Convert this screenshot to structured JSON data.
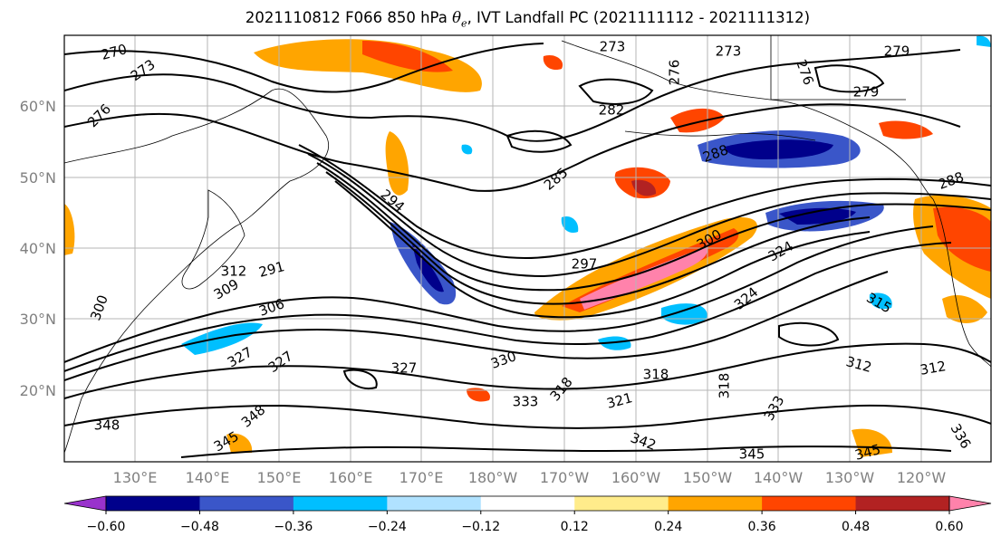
{
  "title": {
    "prefix": "2021110812 F066 850 hPa ",
    "theta_e": "θ",
    "theta_sub": "e",
    "suffix": ", IVT Landfall PC (2021111112 - 2021111312)"
  },
  "lat_labels": [
    "60°N",
    "50°N",
    "40°N",
    "30°N",
    "20°N"
  ],
  "lon_labels": [
    "130°E",
    "140°E",
    "150°E",
    "160°E",
    "170°E",
    "180°W",
    "170°W",
    "160°W",
    "150°W",
    "140°W",
    "130°W",
    "120°W"
  ],
  "colorbar": {
    "colors": [
      "#9932cc",
      "#00008b",
      "#3a56c9",
      "#00bfff",
      "#b0e2ff",
      "#ffffff",
      "#ffec8b",
      "#ffa500",
      "#ff4500",
      "#b22222",
      "#ff82ab"
    ],
    "tick_labels": [
      "−0.60",
      "−0.48",
      "−0.36",
      "−0.24",
      "−0.12",
      "0.12",
      "0.24",
      "0.36",
      "0.48",
      "0.60"
    ]
  },
  "contour_labels": [
    "270",
    "273",
    "273",
    "273",
    "279",
    "276",
    "276",
    "276",
    "279",
    "282",
    "285",
    "288",
    "288",
    "291",
    "294",
    "297",
    "300",
    "306",
    "309",
    "312",
    "312",
    "312",
    "315",
    "318",
    "318",
    "318",
    "321",
    "324",
    "327",
    "327",
    "327",
    "330",
    "333",
    "333",
    "336",
    "342",
    "345",
    "345",
    "345",
    "348",
    "348",
    "300",
    "324"
  ]
}
